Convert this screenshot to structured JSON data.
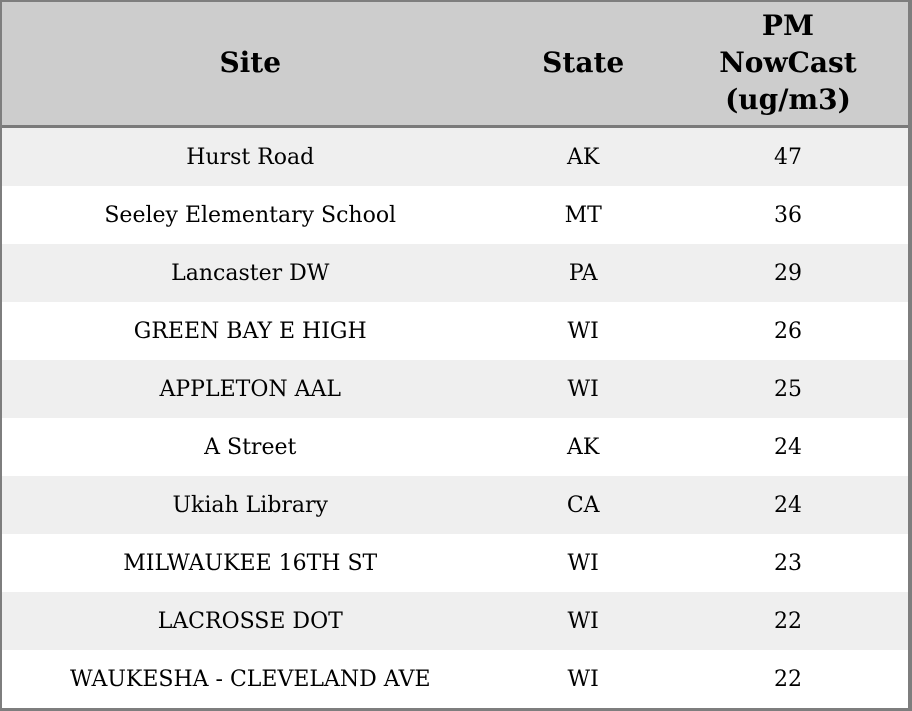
{
  "table": {
    "columns": [
      {
        "key": "site",
        "label": "Site"
      },
      {
        "key": "state",
        "label": "State"
      },
      {
        "key": "pm",
        "label": "PM NowCast (ug/m3)"
      }
    ],
    "rows": [
      {
        "site": "Hurst Road",
        "state": "AK",
        "pm": 47
      },
      {
        "site": "Seeley Elementary School",
        "state": "MT",
        "pm": 36
      },
      {
        "site": "Lancaster DW",
        "state": "PA",
        "pm": 29
      },
      {
        "site": "GREEN BAY E HIGH",
        "state": "WI",
        "pm": 26
      },
      {
        "site": "APPLETON AAL",
        "state": "WI",
        "pm": 25
      },
      {
        "site": "A Street",
        "state": "AK",
        "pm": 24
      },
      {
        "site": "Ukiah Library",
        "state": "CA",
        "pm": 24
      },
      {
        "site": "MILWAUKEE 16TH ST",
        "state": "WI",
        "pm": 23
      },
      {
        "site": "LACROSSE DOT",
        "state": "WI",
        "pm": 22
      },
      {
        "site": "WAUKESHA - CLEVELAND AVE",
        "state": "WI",
        "pm": 22
      }
    ]
  },
  "chart_data": {
    "type": "table",
    "title": "",
    "columns": [
      "Site",
      "State",
      "PM NowCast (ug/m3)"
    ],
    "rows": [
      [
        "Hurst Road",
        "AK",
        47
      ],
      [
        "Seeley Elementary School",
        "MT",
        36
      ],
      [
        "Lancaster DW",
        "PA",
        29
      ],
      [
        "GREEN BAY E HIGH",
        "WI",
        26
      ],
      [
        "APPLETON AAL",
        "WI",
        25
      ],
      [
        "A Street",
        "AK",
        24
      ],
      [
        "Ukiah Library",
        "CA",
        24
      ],
      [
        "MILWAUKEE 16TH ST",
        "WI",
        23
      ],
      [
        "LACROSSE DOT",
        "WI",
        22
      ],
      [
        "WAUKESHA - CLEVELAND AVE",
        "WI",
        22
      ]
    ]
  },
  "colors": {
    "header_bg": "#cdcdcd",
    "header_separator": "#7a7a7a",
    "frame_border": "#7e7e7e",
    "row_odd": "#efefef",
    "row_even": "#ffffff",
    "text": "#000000"
  }
}
